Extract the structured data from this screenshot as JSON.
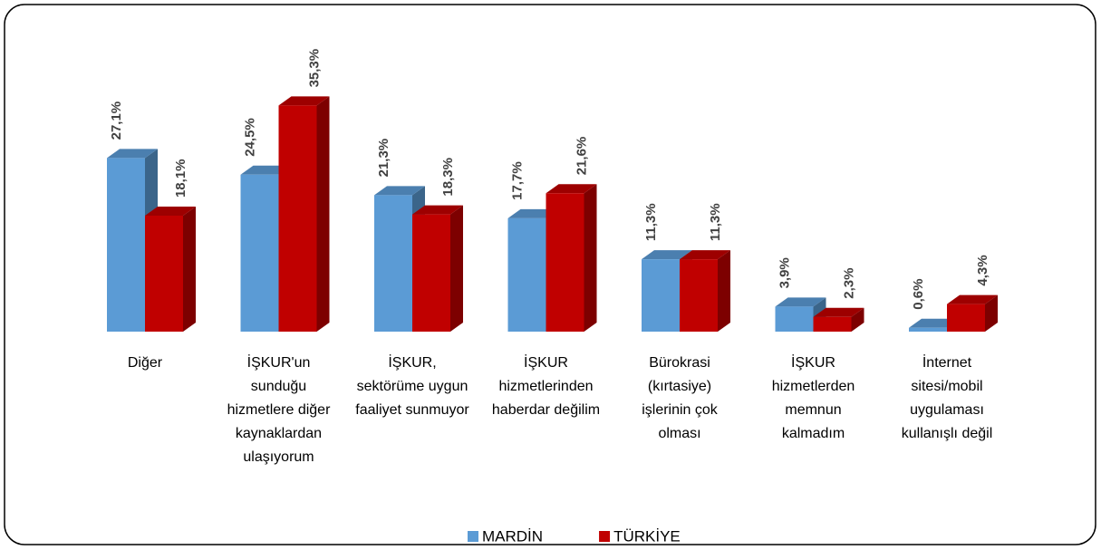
{
  "chart_data": {
    "type": "bar3d",
    "categories": [
      "Diğer",
      "İŞKUR'un sunduğu hizmetlere diğer kaynaklardan ulaşıyorum",
      "İŞKUR, sektörüme uygun faaliyet sunmuyor",
      "İŞKUR hizmetlerinden haberdar değilim",
      "Bürokrasi (kırtasiye) işlerinin çok olması",
      "İŞKUR hizmetlerden memnun kalmadım",
      "İnternet sitesi/mobil uygulaması kullanışlı değil"
    ],
    "series": [
      {
        "name": "MARDİN",
        "color": "#5b9bd5",
        "values": [
          27.1,
          24.5,
          21.3,
          17.7,
          11.3,
          3.9,
          0.6
        ],
        "value_labels": [
          "27,1%",
          "24,5%",
          "21,3%",
          "17,7%",
          "11,3%",
          "3,9%",
          "0,6%"
        ]
      },
      {
        "name": "TÜRKİYE",
        "color": "#c00000",
        "values": [
          18.1,
          35.3,
          18.3,
          21.6,
          11.3,
          2.3,
          4.3
        ],
        "value_labels": [
          "18,1%",
          "35,3%",
          "18,3%",
          "21,6%",
          "11,3%",
          "2,3%",
          "4,3%"
        ]
      }
    ],
    "legend": "bottom"
  }
}
